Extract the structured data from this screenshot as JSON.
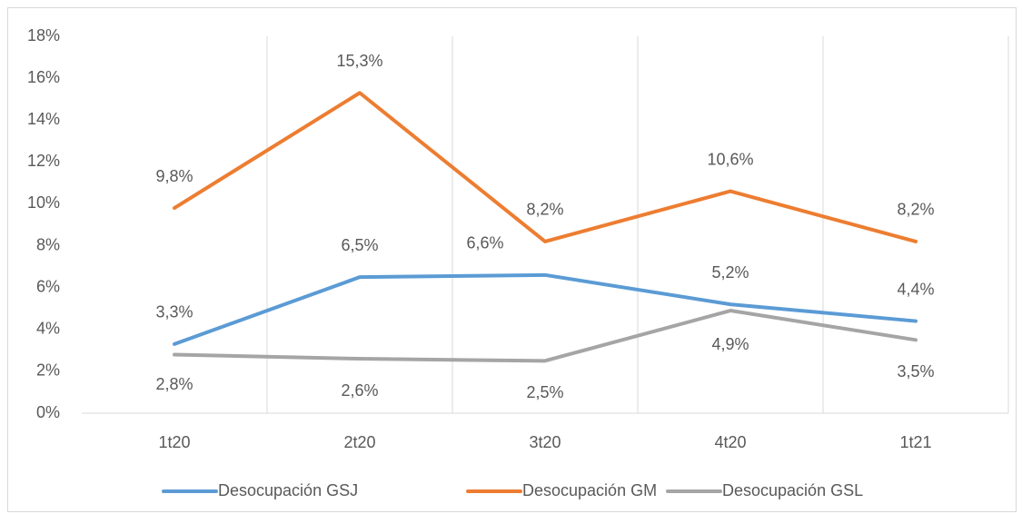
{
  "chart_data": {
    "type": "line",
    "categories": [
      "1t20",
      "2t20",
      "3t20",
      "4t20",
      "1t21"
    ],
    "series": [
      {
        "name": "Desocupación GSJ",
        "color": "#5b9bd5",
        "values": [
          3.3,
          6.5,
          6.6,
          5.2,
          4.4
        ],
        "value_labels": [
          "3,3%",
          "6,5%",
          "6,6%",
          "5,2%",
          "4,4%"
        ]
      },
      {
        "name": "Desocupación GM",
        "color": "#ed7d31",
        "values": [
          9.8,
          15.3,
          8.2,
          10.6,
          8.2
        ],
        "value_labels": [
          "9,8%",
          "15,3%",
          "8,2%",
          "10,6%",
          "8,2%"
        ]
      },
      {
        "name": "Desocupación GSL",
        "color": "#a5a5a5",
        "values": [
          2.8,
          2.6,
          2.5,
          4.9,
          3.5
        ],
        "value_labels": [
          "2,8%",
          "2,6%",
          "2,5%",
          "4,9%",
          "3,5%"
        ]
      }
    ],
    "ylim": [
      0,
      18
    ],
    "yticks": [
      {
        "value": 0,
        "label": "0%"
      },
      {
        "value": 2,
        "label": "2%"
      },
      {
        "value": 4,
        "label": "4%"
      },
      {
        "value": 6,
        "label": "6%"
      },
      {
        "value": 8,
        "label": "8%"
      },
      {
        "value": 10,
        "label": "10%"
      },
      {
        "value": 12,
        "label": "12%"
      },
      {
        "value": 14,
        "label": "14%"
      },
      {
        "value": 16,
        "label": "16%"
      },
      {
        "value": 18,
        "label": "18%"
      }
    ],
    "grid": true,
    "legend": "bottom"
  }
}
